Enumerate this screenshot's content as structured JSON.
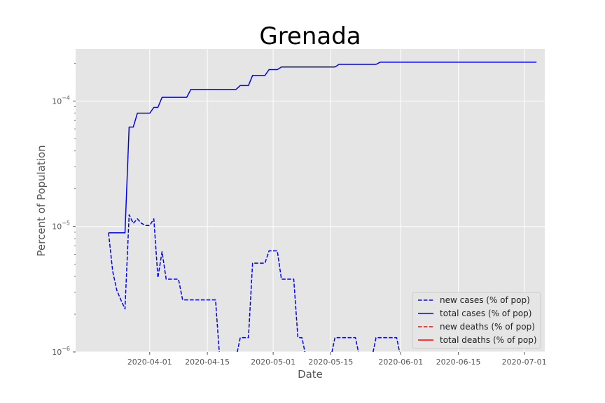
{
  "chart_data": {
    "type": "line",
    "title": "Grenada",
    "xlabel": "Date",
    "ylabel": "Percent of Population",
    "yscale": "log",
    "ylim": [
      1e-06,
      0.00026
    ],
    "xlim": [
      "2020-03-14",
      "2020-07-06"
    ],
    "x_ticks": [
      "2020-04-01",
      "2020-04-15",
      "2020-05-01",
      "2020-05-15",
      "2020-06-01",
      "2020-06-15",
      "2020-07-01"
    ],
    "y_ticks": [
      {
        "value": 1e-06,
        "base": "10",
        "exp": "−6"
      },
      {
        "value": 1e-05,
        "base": "10",
        "exp": "−5"
      },
      {
        "value": 0.0001,
        "base": "10",
        "exp": "−4"
      }
    ],
    "grid": true,
    "background": "#e5e5e5",
    "legend_position": "lower right",
    "series": [
      {
        "name": "new cases (% of pop)",
        "color": "#0000ff",
        "style": "dashed",
        "points": [
          [
            "2020-03-22",
            8.9e-06
          ],
          [
            "2020-03-23",
            4.4e-06
          ],
          [
            "2020-03-24",
            3.1e-06
          ],
          [
            "2020-03-25",
            2.6e-06
          ],
          [
            "2020-03-26",
            2.2e-06
          ],
          [
            "2020-03-27",
            1.24e-05
          ],
          [
            "2020-03-28",
            1.06e-05
          ],
          [
            "2020-03-29",
            1.15e-05
          ],
          [
            "2020-03-30",
            1.06e-05
          ],
          [
            "2020-03-31",
            1.02e-05
          ],
          [
            "2020-04-01",
            1.02e-05
          ],
          [
            "2020-04-02",
            1.15e-05
          ],
          [
            "2020-04-03",
            3.9e-06
          ],
          [
            "2020-04-04",
            6.3e-06
          ],
          [
            "2020-04-05",
            3.8e-06
          ],
          [
            "2020-04-06",
            3.8e-06
          ],
          [
            "2020-04-07",
            3.8e-06
          ],
          [
            "2020-04-08",
            3.8e-06
          ],
          [
            "2020-04-09",
            2.6e-06
          ],
          [
            "2020-04-10",
            2.6e-06
          ],
          [
            "2020-04-11",
            2.6e-06
          ],
          [
            "2020-04-12",
            2.6e-06
          ],
          [
            "2020-04-13",
            2.6e-06
          ],
          [
            "2020-04-14",
            2.6e-06
          ],
          [
            "2020-04-15",
            2.6e-06
          ],
          [
            "2020-04-16",
            2.6e-06
          ],
          [
            "2020-04-17",
            2.6e-06
          ],
          [
            "2020-04-18",
            9e-07
          ],
          null,
          [
            "2020-04-22",
            9e-07
          ],
          [
            "2020-04-23",
            1.3e-06
          ],
          [
            "2020-04-24",
            1.3e-06
          ],
          [
            "2020-04-25",
            1.3e-06
          ],
          [
            "2020-04-26",
            5.1e-06
          ],
          [
            "2020-04-27",
            5.1e-06
          ],
          [
            "2020-04-28",
            5.1e-06
          ],
          [
            "2020-04-29",
            5.1e-06
          ],
          [
            "2020-04-30",
            6.4e-06
          ],
          [
            "2020-05-01",
            6.4e-06
          ],
          [
            "2020-05-02",
            6.4e-06
          ],
          [
            "2020-05-03",
            3.8e-06
          ],
          [
            "2020-05-04",
            3.8e-06
          ],
          [
            "2020-05-05",
            3.8e-06
          ],
          [
            "2020-05-06",
            3.8e-06
          ],
          [
            "2020-05-07",
            1.3e-06
          ],
          [
            "2020-05-08",
            1.3e-06
          ],
          [
            "2020-05-09",
            9e-07
          ],
          null,
          [
            "2020-05-15",
            9e-07
          ],
          [
            "2020-05-16",
            1.3e-06
          ],
          [
            "2020-05-17",
            1.3e-06
          ],
          [
            "2020-05-18",
            1.3e-06
          ],
          [
            "2020-05-19",
            1.3e-06
          ],
          [
            "2020-05-20",
            1.3e-06
          ],
          [
            "2020-05-21",
            1.3e-06
          ],
          [
            "2020-05-22",
            9e-07
          ],
          null,
          [
            "2020-05-25",
            9e-07
          ],
          [
            "2020-05-26",
            1.3e-06
          ],
          [
            "2020-05-27",
            1.3e-06
          ],
          [
            "2020-05-28",
            1.3e-06
          ],
          [
            "2020-05-29",
            1.3e-06
          ],
          [
            "2020-05-30",
            1.3e-06
          ],
          [
            "2020-05-31",
            1.3e-06
          ],
          [
            "2020-06-01",
            9e-07
          ]
        ]
      },
      {
        "name": "total cases (% of pop)",
        "color": "#0000ff",
        "style": "solid",
        "points": [
          [
            "2020-03-22",
            8.9e-06
          ],
          [
            "2020-03-26",
            8.9e-06
          ],
          [
            "2020-03-27",
            6.2e-05
          ],
          [
            "2020-03-28",
            6.2e-05
          ],
          [
            "2020-03-29",
            8e-05
          ],
          [
            "2020-04-01",
            8e-05
          ],
          [
            "2020-04-02",
            8.9e-05
          ],
          [
            "2020-04-03",
            8.9e-05
          ],
          [
            "2020-04-04",
            0.000107
          ],
          [
            "2020-04-10",
            0.000107
          ],
          [
            "2020-04-11",
            0.000124
          ],
          [
            "2020-04-22",
            0.000124
          ],
          [
            "2020-04-23",
            0.000133
          ],
          [
            "2020-04-25",
            0.000133
          ],
          [
            "2020-04-26",
            0.00016
          ],
          [
            "2020-04-29",
            0.00016
          ],
          [
            "2020-04-30",
            0.000178
          ],
          [
            "2020-05-02",
            0.000178
          ],
          [
            "2020-05-03",
            0.000187
          ],
          [
            "2020-05-16",
            0.000187
          ],
          [
            "2020-05-17",
            0.000196
          ],
          [
            "2020-05-26",
            0.000196
          ],
          [
            "2020-05-27",
            0.000204
          ],
          [
            "2020-07-04",
            0.000204
          ]
        ]
      },
      {
        "name": "new deaths (% of pop)",
        "color": "#ff0000",
        "style": "dashed",
        "points": []
      },
      {
        "name": "total deaths (% of pop)",
        "color": "#ff0000",
        "style": "solid",
        "points": []
      }
    ]
  }
}
